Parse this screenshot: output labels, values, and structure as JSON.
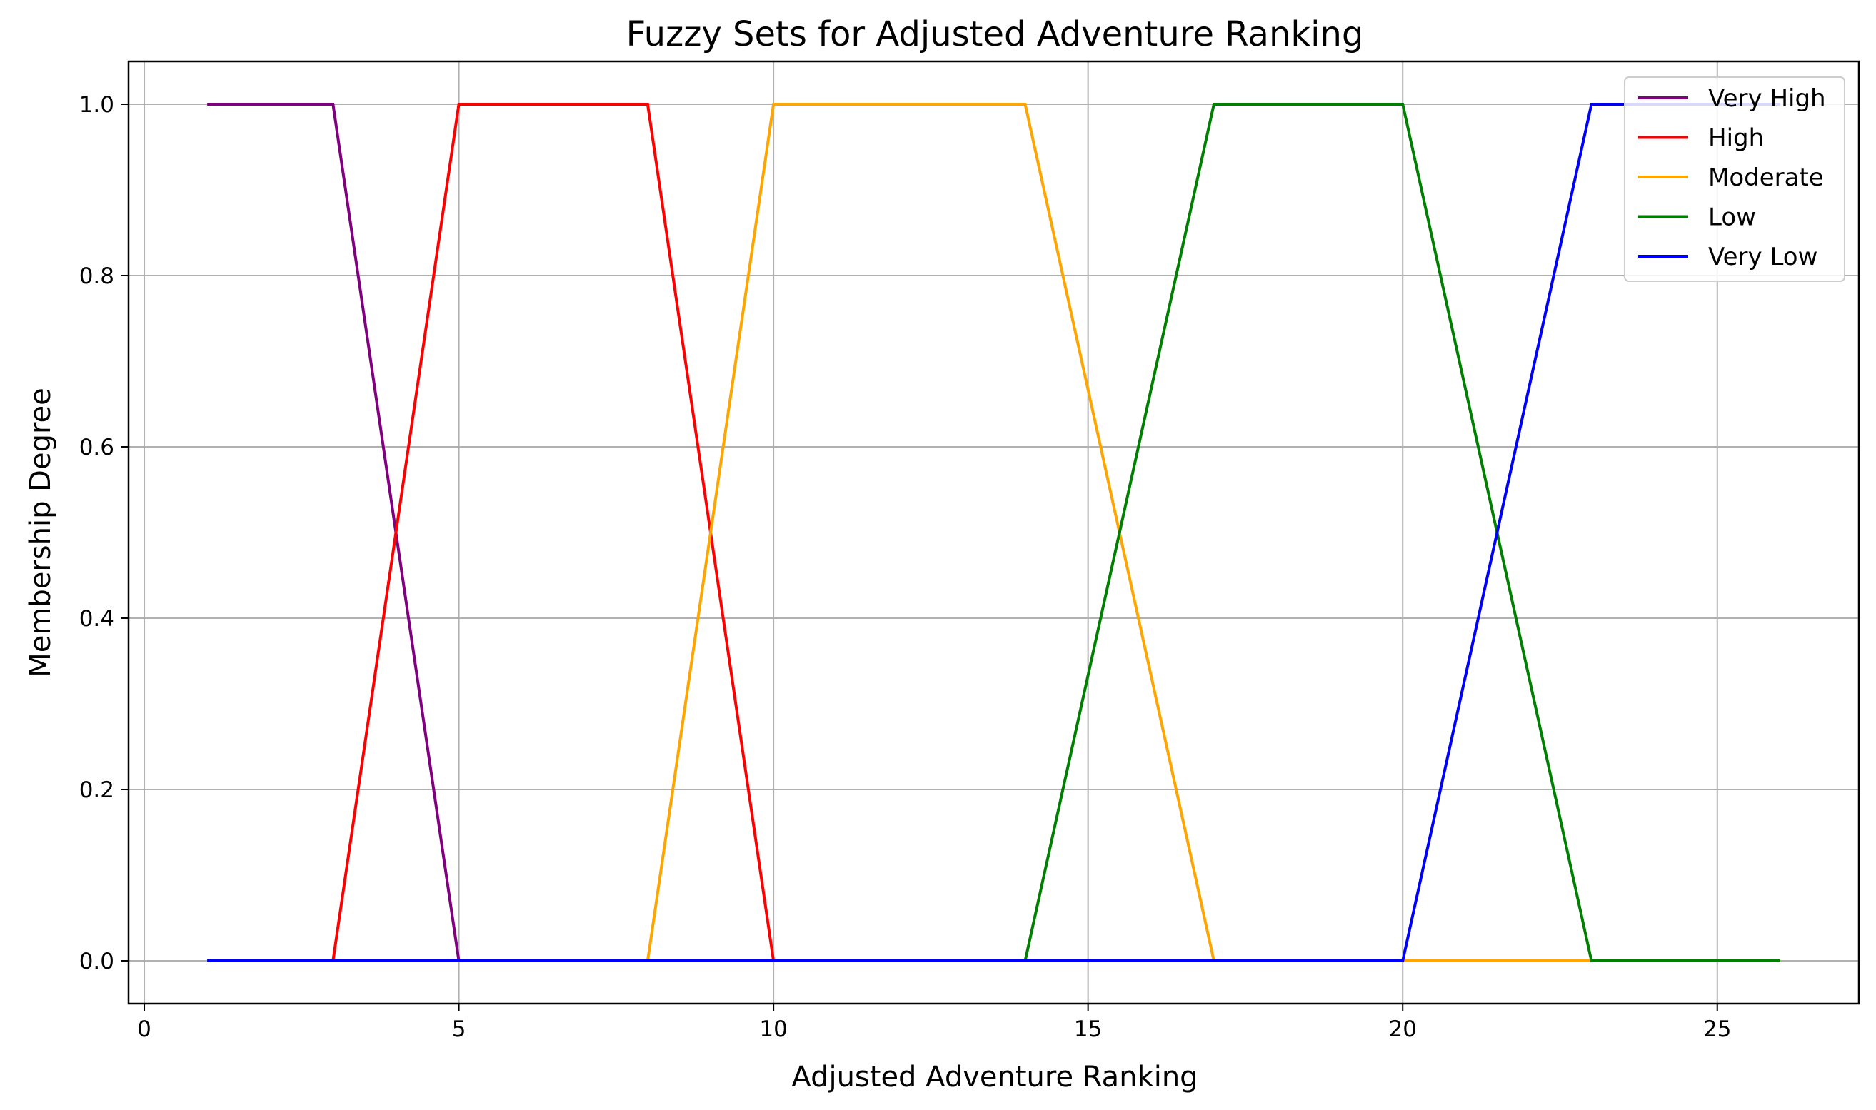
{
  "chart_data": {
    "type": "line",
    "title": "Fuzzy Sets for Adjusted Adventure Ranking",
    "xlabel": "Adjusted Adventure Ranking",
    "ylabel": "Membership Degree",
    "xlim": [
      -0.25,
      27.25
    ],
    "ylim": [
      -0.05,
      1.05
    ],
    "xticks": [
      0,
      5,
      10,
      15,
      20,
      25
    ],
    "yticks": [
      0.0,
      0.2,
      0.4,
      0.6,
      0.8,
      1.0
    ],
    "xtick_labels": [
      "0",
      "5",
      "10",
      "15",
      "20",
      "25"
    ],
    "ytick_labels": [
      "0.0",
      "0.2",
      "0.4",
      "0.6",
      "0.8",
      "1.0"
    ],
    "grid": true,
    "legend_position": "top-right",
    "series": [
      {
        "name": "Very High",
        "color": "#800080",
        "x": [
          1,
          3,
          5,
          26
        ],
        "y": [
          1,
          1,
          0,
          0
        ]
      },
      {
        "name": "High",
        "color": "#ff0000",
        "x": [
          1,
          3,
          5,
          8,
          10,
          26
        ],
        "y": [
          0,
          0,
          1,
          1,
          0,
          0
        ]
      },
      {
        "name": "Moderate",
        "color": "#ffa500",
        "x": [
          1,
          8,
          10,
          14,
          17,
          26
        ],
        "y": [
          0,
          0,
          1,
          1,
          0,
          0
        ]
      },
      {
        "name": "Low",
        "color": "#008000",
        "x": [
          1,
          14,
          17,
          20,
          23,
          26
        ],
        "y": [
          0,
          0,
          1,
          1,
          0,
          0
        ]
      },
      {
        "name": "Very Low",
        "color": "#0000ff",
        "x": [
          1,
          20,
          23,
          26
        ],
        "y": [
          0,
          0,
          1,
          1
        ]
      }
    ]
  }
}
